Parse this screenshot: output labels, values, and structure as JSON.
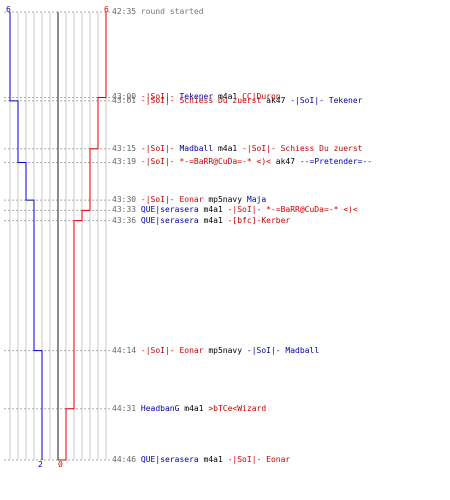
{
  "colors": {
    "blue_team": "#0000cc",
    "red_team": "#dd0000",
    "grid": "#c8c8c8",
    "dotted": "#aaaaaa",
    "center_line": "#666666",
    "time_text": "#666666"
  },
  "score_axis": {
    "blue_start": "6",
    "red_start": "6",
    "blue_end": "2",
    "red_end": "0"
  },
  "steps": {
    "blue": [
      6,
      5,
      4,
      3,
      2
    ],
    "red": [
      6,
      5,
      4,
      3,
      2,
      1,
      0
    ]
  },
  "events": [
    {
      "time": "42:35",
      "parts": [
        {
          "text": "round started",
          "color": "gray"
        }
      ]
    },
    {
      "time": "43:00",
      "parts": [
        {
          "text": "-|SoI|- ",
          "color": "red"
        },
        {
          "text": "Tekener",
          "color": "blue"
        },
        {
          "text": " m4a1 ",
          "color": "blk"
        },
        {
          "text": "CC|Duron",
          "color": "red"
        }
      ]
    },
    {
      "time": "43:01",
      "parts": [
        {
          "text": "-|SoI|- Schiess Du zuerst",
          "color": "red"
        },
        {
          "text": " ak47 ",
          "color": "blk"
        },
        {
          "text": "-|SoI|- Tekener",
          "color": "blue"
        }
      ]
    },
    {
      "time": "43:15",
      "parts": [
        {
          "text": "-|SoI|- ",
          "color": "red"
        },
        {
          "text": "Madball",
          "color": "blue"
        },
        {
          "text": " m4a1 ",
          "color": "blk"
        },
        {
          "text": "-|SoI|- Schiess Du zuerst",
          "color": "red"
        }
      ]
    },
    {
      "time": "43:19",
      "parts": [
        {
          "text": "-|SoI|- *-=BaRR@CuDa=-* <)<",
          "color": "red"
        },
        {
          "text": " ak47 ",
          "color": "blk"
        },
        {
          "text": "--=Pretender=--",
          "color": "blue"
        }
      ]
    },
    {
      "time": "43:30",
      "parts": [
        {
          "text": "-|SoI|- Eonar",
          "color": "red"
        },
        {
          "text": " mp5navy ",
          "color": "blk"
        },
        {
          "text": "Maja",
          "color": "blue"
        }
      ]
    },
    {
      "time": "43:33",
      "parts": [
        {
          "text": "QUE|serasera",
          "color": "blue"
        },
        {
          "text": " m4a1 ",
          "color": "blk"
        },
        {
          "text": "-|SoI|- *-=BaRR@CuDa=-* <)<",
          "color": "red"
        }
      ]
    },
    {
      "time": "43:36",
      "parts": [
        {
          "text": "QUE|serasera",
          "color": "blue"
        },
        {
          "text": " m4a1 ",
          "color": "blk"
        },
        {
          "text": "-[bfc]-Kerber",
          "color": "red"
        }
      ]
    },
    {
      "time": "44:14",
      "parts": [
        {
          "text": "-|SoI|- Eonar",
          "color": "red"
        },
        {
          "text": " mp5navy ",
          "color": "blk"
        },
        {
          "text": "-|SoI|- Madball",
          "color": "blue"
        }
      ]
    },
    {
      "time": "44:31",
      "parts": [
        {
          "text": "HeadbanG",
          "color": "blue"
        },
        {
          "text": " m4a1 ",
          "color": "blk"
        },
        {
          "text": ">bTCe<Wizard",
          "color": "red"
        }
      ]
    },
    {
      "time": "44:46",
      "parts": [
        {
          "text": "QUE|serasera",
          "color": "blue"
        },
        {
          "text": " m4a1 ",
          "color": "blk"
        },
        {
          "text": "-|SoI|- Eonar",
          "color": "red"
        }
      ]
    }
  ]
}
